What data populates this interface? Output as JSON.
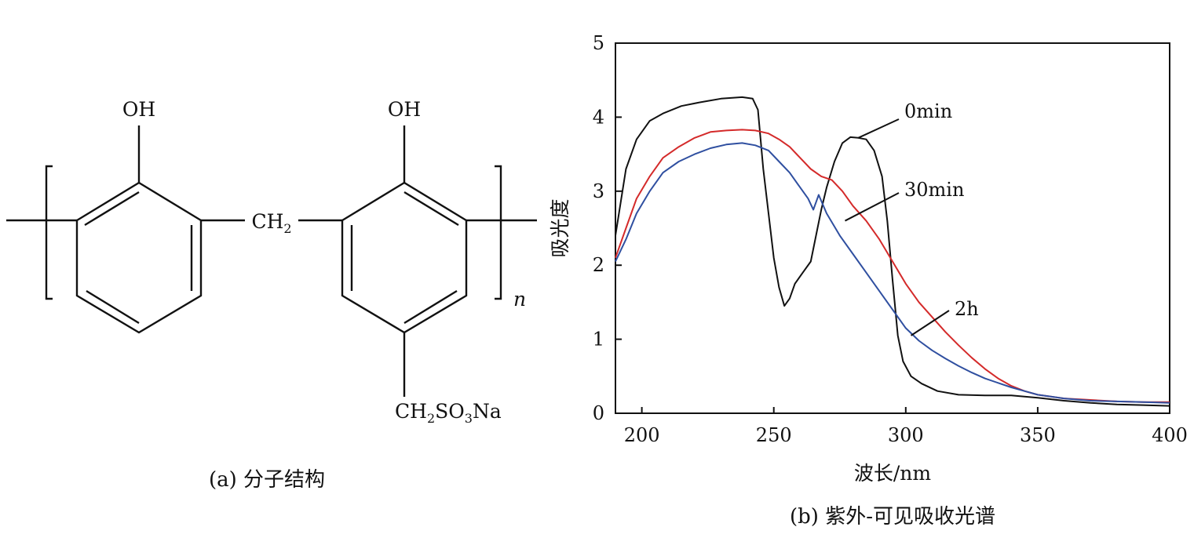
{
  "molecule": {
    "oh_left": "OH",
    "oh_right": "OH",
    "ch2": "CH",
    "ch2_sub": "2",
    "side_group": [
      "CH",
      "2",
      "SO",
      "3",
      "Na"
    ],
    "repeat_n": "n",
    "caption": "(a) 分子结构"
  },
  "chart_data": {
    "type": "line",
    "title": "",
    "caption": "(b) 紫外-可见吸收光谱",
    "xlabel": "波长/nm",
    "ylabel": "吸光度",
    "xlim": [
      190,
      400
    ],
    "ylim": [
      0,
      5
    ],
    "xticks": [
      200,
      250,
      300,
      350,
      400
    ],
    "yticks": [
      0,
      1,
      2,
      3,
      4,
      5
    ],
    "grid": false,
    "series": [
      {
        "name": "0min",
        "color": "#111111",
        "points": [
          [
            190,
            2.4
          ],
          [
            194,
            3.3
          ],
          [
            198,
            3.7
          ],
          [
            203,
            3.95
          ],
          [
            208,
            4.05
          ],
          [
            215,
            4.15
          ],
          [
            222,
            4.2
          ],
          [
            230,
            4.25
          ],
          [
            238,
            4.27
          ],
          [
            242,
            4.25
          ],
          [
            244,
            4.1
          ],
          [
            246,
            3.3
          ],
          [
            248,
            2.7
          ],
          [
            250,
            2.1
          ],
          [
            252,
            1.7
          ],
          [
            254,
            1.45
          ],
          [
            256,
            1.55
          ],
          [
            258,
            1.75
          ],
          [
            261,
            1.9
          ],
          [
            264,
            2.05
          ],
          [
            266,
            2.4
          ],
          [
            268,
            2.75
          ],
          [
            270,
            3.05
          ],
          [
            273,
            3.4
          ],
          [
            276,
            3.65
          ],
          [
            279,
            3.73
          ],
          [
            282,
            3.72
          ],
          [
            285,
            3.7
          ],
          [
            288,
            3.55
          ],
          [
            291,
            3.2
          ],
          [
            293,
            2.6
          ],
          [
            295,
            1.8
          ],
          [
            297,
            1.05
          ],
          [
            299,
            0.7
          ],
          [
            302,
            0.5
          ],
          [
            306,
            0.4
          ],
          [
            312,
            0.3
          ],
          [
            320,
            0.25
          ],
          [
            330,
            0.24
          ],
          [
            340,
            0.24
          ],
          [
            350,
            0.21
          ],
          [
            360,
            0.17
          ],
          [
            370,
            0.14
          ],
          [
            380,
            0.12
          ],
          [
            390,
            0.11
          ],
          [
            400,
            0.1
          ]
        ]
      },
      {
        "name": "30min",
        "color": "#d42a2a",
        "points": [
          [
            190,
            2.1
          ],
          [
            194,
            2.5
          ],
          [
            198,
            2.9
          ],
          [
            203,
            3.2
          ],
          [
            208,
            3.45
          ],
          [
            214,
            3.6
          ],
          [
            220,
            3.72
          ],
          [
            226,
            3.8
          ],
          [
            232,
            3.82
          ],
          [
            238,
            3.83
          ],
          [
            243,
            3.82
          ],
          [
            248,
            3.78
          ],
          [
            252,
            3.7
          ],
          [
            256,
            3.6
          ],
          [
            260,
            3.45
          ],
          [
            264,
            3.3
          ],
          [
            268,
            3.2
          ],
          [
            272,
            3.15
          ],
          [
            276,
            3.0
          ],
          [
            280,
            2.8
          ],
          [
            285,
            2.6
          ],
          [
            290,
            2.35
          ],
          [
            295,
            2.05
          ],
          [
            300,
            1.75
          ],
          [
            305,
            1.5
          ],
          [
            310,
            1.3
          ],
          [
            315,
            1.1
          ],
          [
            320,
            0.92
          ],
          [
            325,
            0.75
          ],
          [
            330,
            0.6
          ],
          [
            335,
            0.47
          ],
          [
            340,
            0.37
          ],
          [
            345,
            0.3
          ],
          [
            350,
            0.25
          ],
          [
            360,
            0.2
          ],
          [
            370,
            0.18
          ],
          [
            380,
            0.16
          ],
          [
            390,
            0.15
          ],
          [
            400,
            0.15
          ]
        ]
      },
      {
        "name": "2h",
        "color": "#2f4fa0",
        "points": [
          [
            190,
            2.05
          ],
          [
            194,
            2.35
          ],
          [
            198,
            2.7
          ],
          [
            203,
            3.0
          ],
          [
            208,
            3.25
          ],
          [
            214,
            3.4
          ],
          [
            220,
            3.5
          ],
          [
            226,
            3.58
          ],
          [
            232,
            3.63
          ],
          [
            238,
            3.65
          ],
          [
            243,
            3.62
          ],
          [
            248,
            3.55
          ],
          [
            252,
            3.4
          ],
          [
            256,
            3.25
          ],
          [
            260,
            3.05
          ],
          [
            263,
            2.9
          ],
          [
            265,
            2.75
          ],
          [
            267,
            2.95
          ],
          [
            270,
            2.7
          ],
          [
            275,
            2.4
          ],
          [
            280,
            2.15
          ],
          [
            285,
            1.9
          ],
          [
            290,
            1.65
          ],
          [
            295,
            1.4
          ],
          [
            300,
            1.15
          ],
          [
            305,
            0.98
          ],
          [
            310,
            0.85
          ],
          [
            315,
            0.74
          ],
          [
            320,
            0.64
          ],
          [
            325,
            0.55
          ],
          [
            330,
            0.47
          ],
          [
            335,
            0.41
          ],
          [
            340,
            0.35
          ],
          [
            345,
            0.3
          ],
          [
            350,
            0.25
          ],
          [
            360,
            0.2
          ],
          [
            370,
            0.17
          ],
          [
            380,
            0.16
          ],
          [
            390,
            0.15
          ],
          [
            400,
            0.14
          ]
        ]
      }
    ],
    "annotations": [
      {
        "text": "0min",
        "series": "0min"
      },
      {
        "text": "30min",
        "series": "30min"
      },
      {
        "text": "2h",
        "series": "2h"
      }
    ]
  }
}
